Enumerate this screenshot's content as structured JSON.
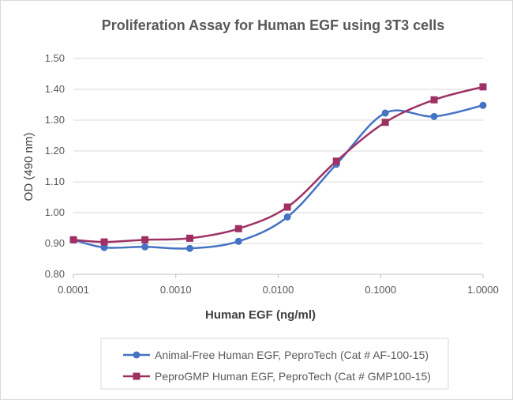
{
  "chart_data": {
    "type": "line",
    "title": "Proliferation Assay for Human EGF using 3T3 cells",
    "xlabel": "Human EGF (ng/ml)",
    "ylabel": "OD (490 nm)",
    "xscale": "log",
    "xlim": [
      0.0001,
      1.0
    ],
    "ylim": [
      0.8,
      1.5
    ],
    "x_ticks": [
      "0.0001",
      "0.0010",
      "0.0100",
      "0.1000",
      "1.0000"
    ],
    "y_ticks": [
      "0.80",
      "0.90",
      "1.00",
      "1.10",
      "1.20",
      "1.30",
      "1.40",
      "1.50"
    ],
    "grid": "horizontal",
    "legend_position": "bottom",
    "smoothed": true,
    "x": [
      0.0001,
      0.0002,
      0.0005,
      0.00137,
      0.0041,
      0.0123,
      0.037,
      0.111,
      0.333,
      1.0
    ],
    "series": [
      {
        "name": "Animal-Free Human EGF, PeproTech (Cat # AF-100-15)",
        "color": "#4472c4",
        "marker": "circle",
        "values": [
          0.912,
          0.887,
          0.889,
          0.884,
          0.907,
          0.986,
          1.157,
          1.323,
          1.312,
          1.348
        ]
      },
      {
        "name": "PeproGMP Human EGF, PeproTech (Cat # GMP100-15)",
        "color": "#9e3163",
        "marker": "square",
        "values": [
          0.912,
          0.905,
          0.912,
          0.917,
          0.948,
          1.018,
          1.167,
          1.293,
          1.366,
          1.408
        ]
      }
    ]
  }
}
